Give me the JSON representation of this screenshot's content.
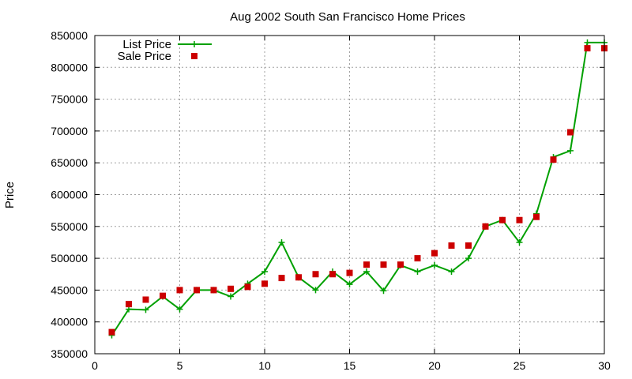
{
  "chart_data": {
    "type": "line",
    "title": "Aug 2002 South San Francisco Home Prices",
    "xlabel": "",
    "ylabel": "Price",
    "xlim": [
      0,
      30
    ],
    "ylim": [
      350000,
      850000
    ],
    "xticks": [
      0,
      5,
      10,
      15,
      20,
      25,
      30
    ],
    "xtick_labels": [
      "0",
      "5",
      "10",
      "15",
      "20",
      "25",
      "30"
    ],
    "yticks": [
      350000,
      400000,
      450000,
      500000,
      550000,
      600000,
      650000,
      700000,
      750000,
      800000,
      850000
    ],
    "ytick_labels": [
      "350000",
      "400000",
      "450000",
      "500000",
      "550000",
      "600000",
      "650000",
      "700000",
      "750000",
      "800000",
      "850000"
    ],
    "grid": true,
    "legend_position": "top-left",
    "x": [
      1,
      2,
      3,
      4,
      5,
      6,
      7,
      8,
      9,
      10,
      11,
      12,
      13,
      14,
      15,
      16,
      17,
      18,
      19,
      20,
      21,
      22,
      23,
      24,
      25,
      26,
      27,
      28,
      29,
      30
    ],
    "series": [
      {
        "name": "List Price",
        "style": "line-plus",
        "color": "#00a000",
        "values": [
          379000,
          420000,
          419000,
          440000,
          420000,
          450000,
          450000,
          440000,
          460000,
          479000,
          525000,
          470000,
          450000,
          479000,
          459000,
          479000,
          449000,
          489000,
          479000,
          489000,
          479000,
          500000,
          550000,
          560000,
          525000,
          570000,
          659000,
          669000,
          839000,
          839000
        ]
      },
      {
        "name": "Sale Price",
        "style": "square-points",
        "color": "#cc0000",
        "values": [
          384000,
          428000,
          435000,
          441000,
          450000,
          450000,
          450000,
          452000,
          455000,
          460000,
          469000,
          470000,
          475000,
          475000,
          477000,
          490000,
          490000,
          490000,
          500000,
          508000,
          520000,
          520000,
          550000,
          560000,
          560000,
          565000,
          655000,
          698000,
          830000,
          830000
        ]
      }
    ]
  }
}
